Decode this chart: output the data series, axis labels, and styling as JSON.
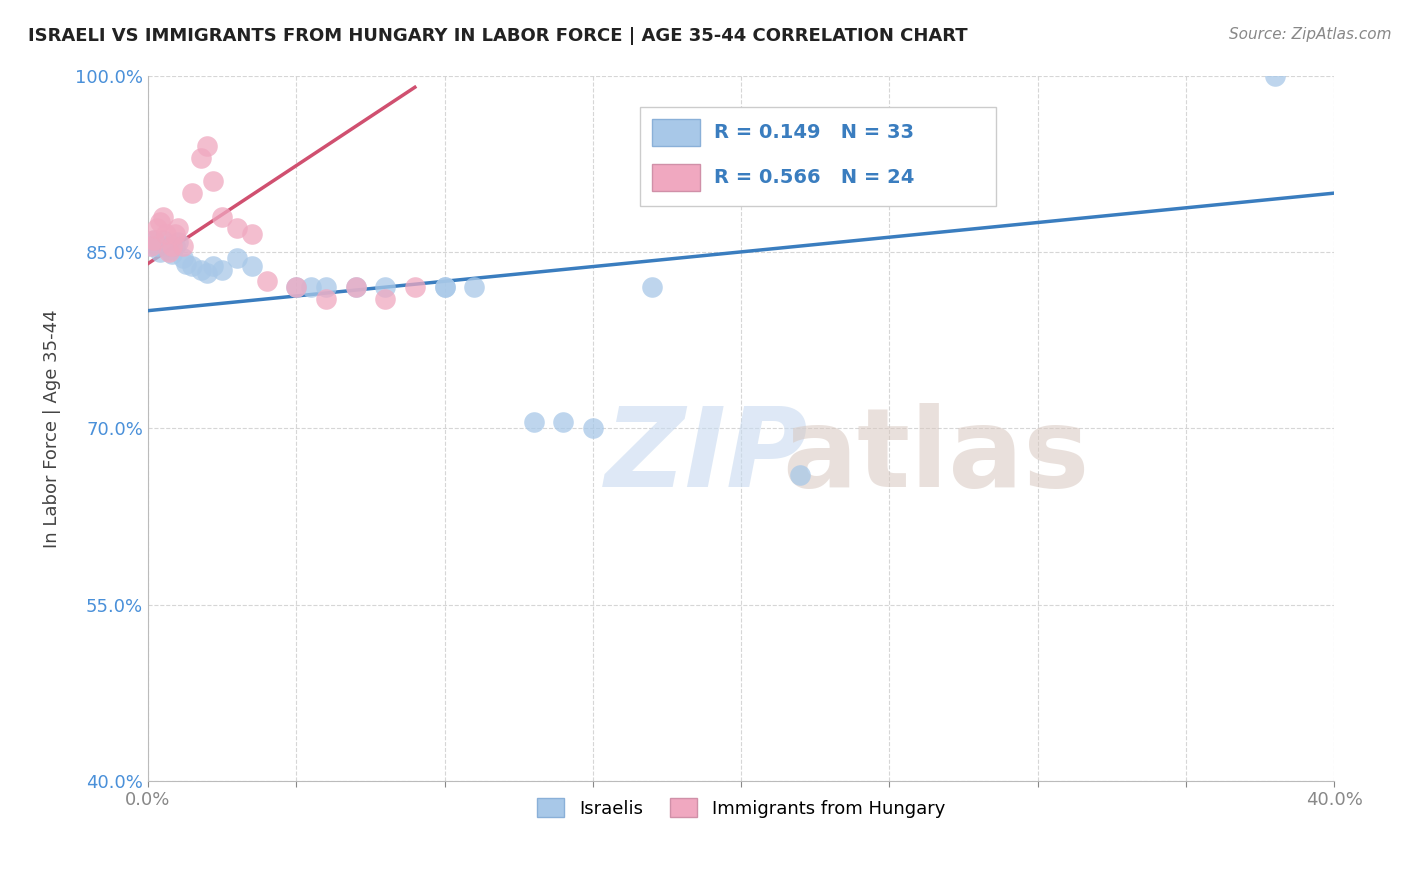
{
  "title": "ISRAELI VS IMMIGRANTS FROM HUNGARY IN LABOR FORCE | AGE 35-44 CORRELATION CHART",
  "source": "Source: ZipAtlas.com",
  "ylabel": "In Labor Force | Age 35-44",
  "r_blue": 0.149,
  "n_blue": 33,
  "r_pink": 0.566,
  "n_pink": 24,
  "xlim": [
    0.0,
    0.4
  ],
  "ylim": [
    0.4,
    1.0
  ],
  "xticks": [
    0.0,
    0.05,
    0.1,
    0.15,
    0.2,
    0.25,
    0.3,
    0.35,
    0.4
  ],
  "yticks": [
    0.4,
    0.55,
    0.7,
    0.85,
    1.0
  ],
  "blue_color": "#a8c8e8",
  "pink_color": "#f0a8c0",
  "blue_line_color": "#3a7dbf",
  "pink_line_color": "#d05070",
  "blue_scatter_x": [
    0.001,
    0.002,
    0.003,
    0.004,
    0.005,
    0.006,
    0.007,
    0.008,
    0.009,
    0.01,
    0.012,
    0.013,
    0.015,
    0.018,
    0.02,
    0.022,
    0.025,
    0.03,
    0.035,
    0.05,
    0.055,
    0.06,
    0.07,
    0.08,
    0.1,
    0.1,
    0.11,
    0.13,
    0.14,
    0.15,
    0.17,
    0.22,
    0.38
  ],
  "blue_scatter_y": [
    0.855,
    0.86,
    0.855,
    0.85,
    0.86,
    0.855,
    0.852,
    0.848,
    0.855,
    0.858,
    0.845,
    0.84,
    0.838,
    0.835,
    0.832,
    0.838,
    0.835,
    0.845,
    0.838,
    0.82,
    0.82,
    0.82,
    0.82,
    0.82,
    0.82,
    0.82,
    0.82,
    0.705,
    0.705,
    0.7,
    0.82,
    0.66,
    1.0
  ],
  "pink_scatter_x": [
    0.001,
    0.002,
    0.003,
    0.004,
    0.005,
    0.006,
    0.007,
    0.008,
    0.009,
    0.01,
    0.012,
    0.015,
    0.018,
    0.02,
    0.022,
    0.025,
    0.03,
    0.035,
    0.04,
    0.05,
    0.06,
    0.07,
    0.08,
    0.09
  ],
  "pink_scatter_y": [
    0.855,
    0.86,
    0.87,
    0.875,
    0.88,
    0.865,
    0.85,
    0.855,
    0.865,
    0.87,
    0.855,
    0.9,
    0.93,
    0.94,
    0.91,
    0.88,
    0.87,
    0.865,
    0.825,
    0.82,
    0.81,
    0.82,
    0.81,
    0.82
  ],
  "blue_trend_x": [
    0.0,
    0.4
  ],
  "blue_trend_y": [
    0.8,
    0.9
  ],
  "pink_trend_x": [
    0.0,
    0.09
  ],
  "pink_trend_y": [
    0.84,
    0.99
  ]
}
